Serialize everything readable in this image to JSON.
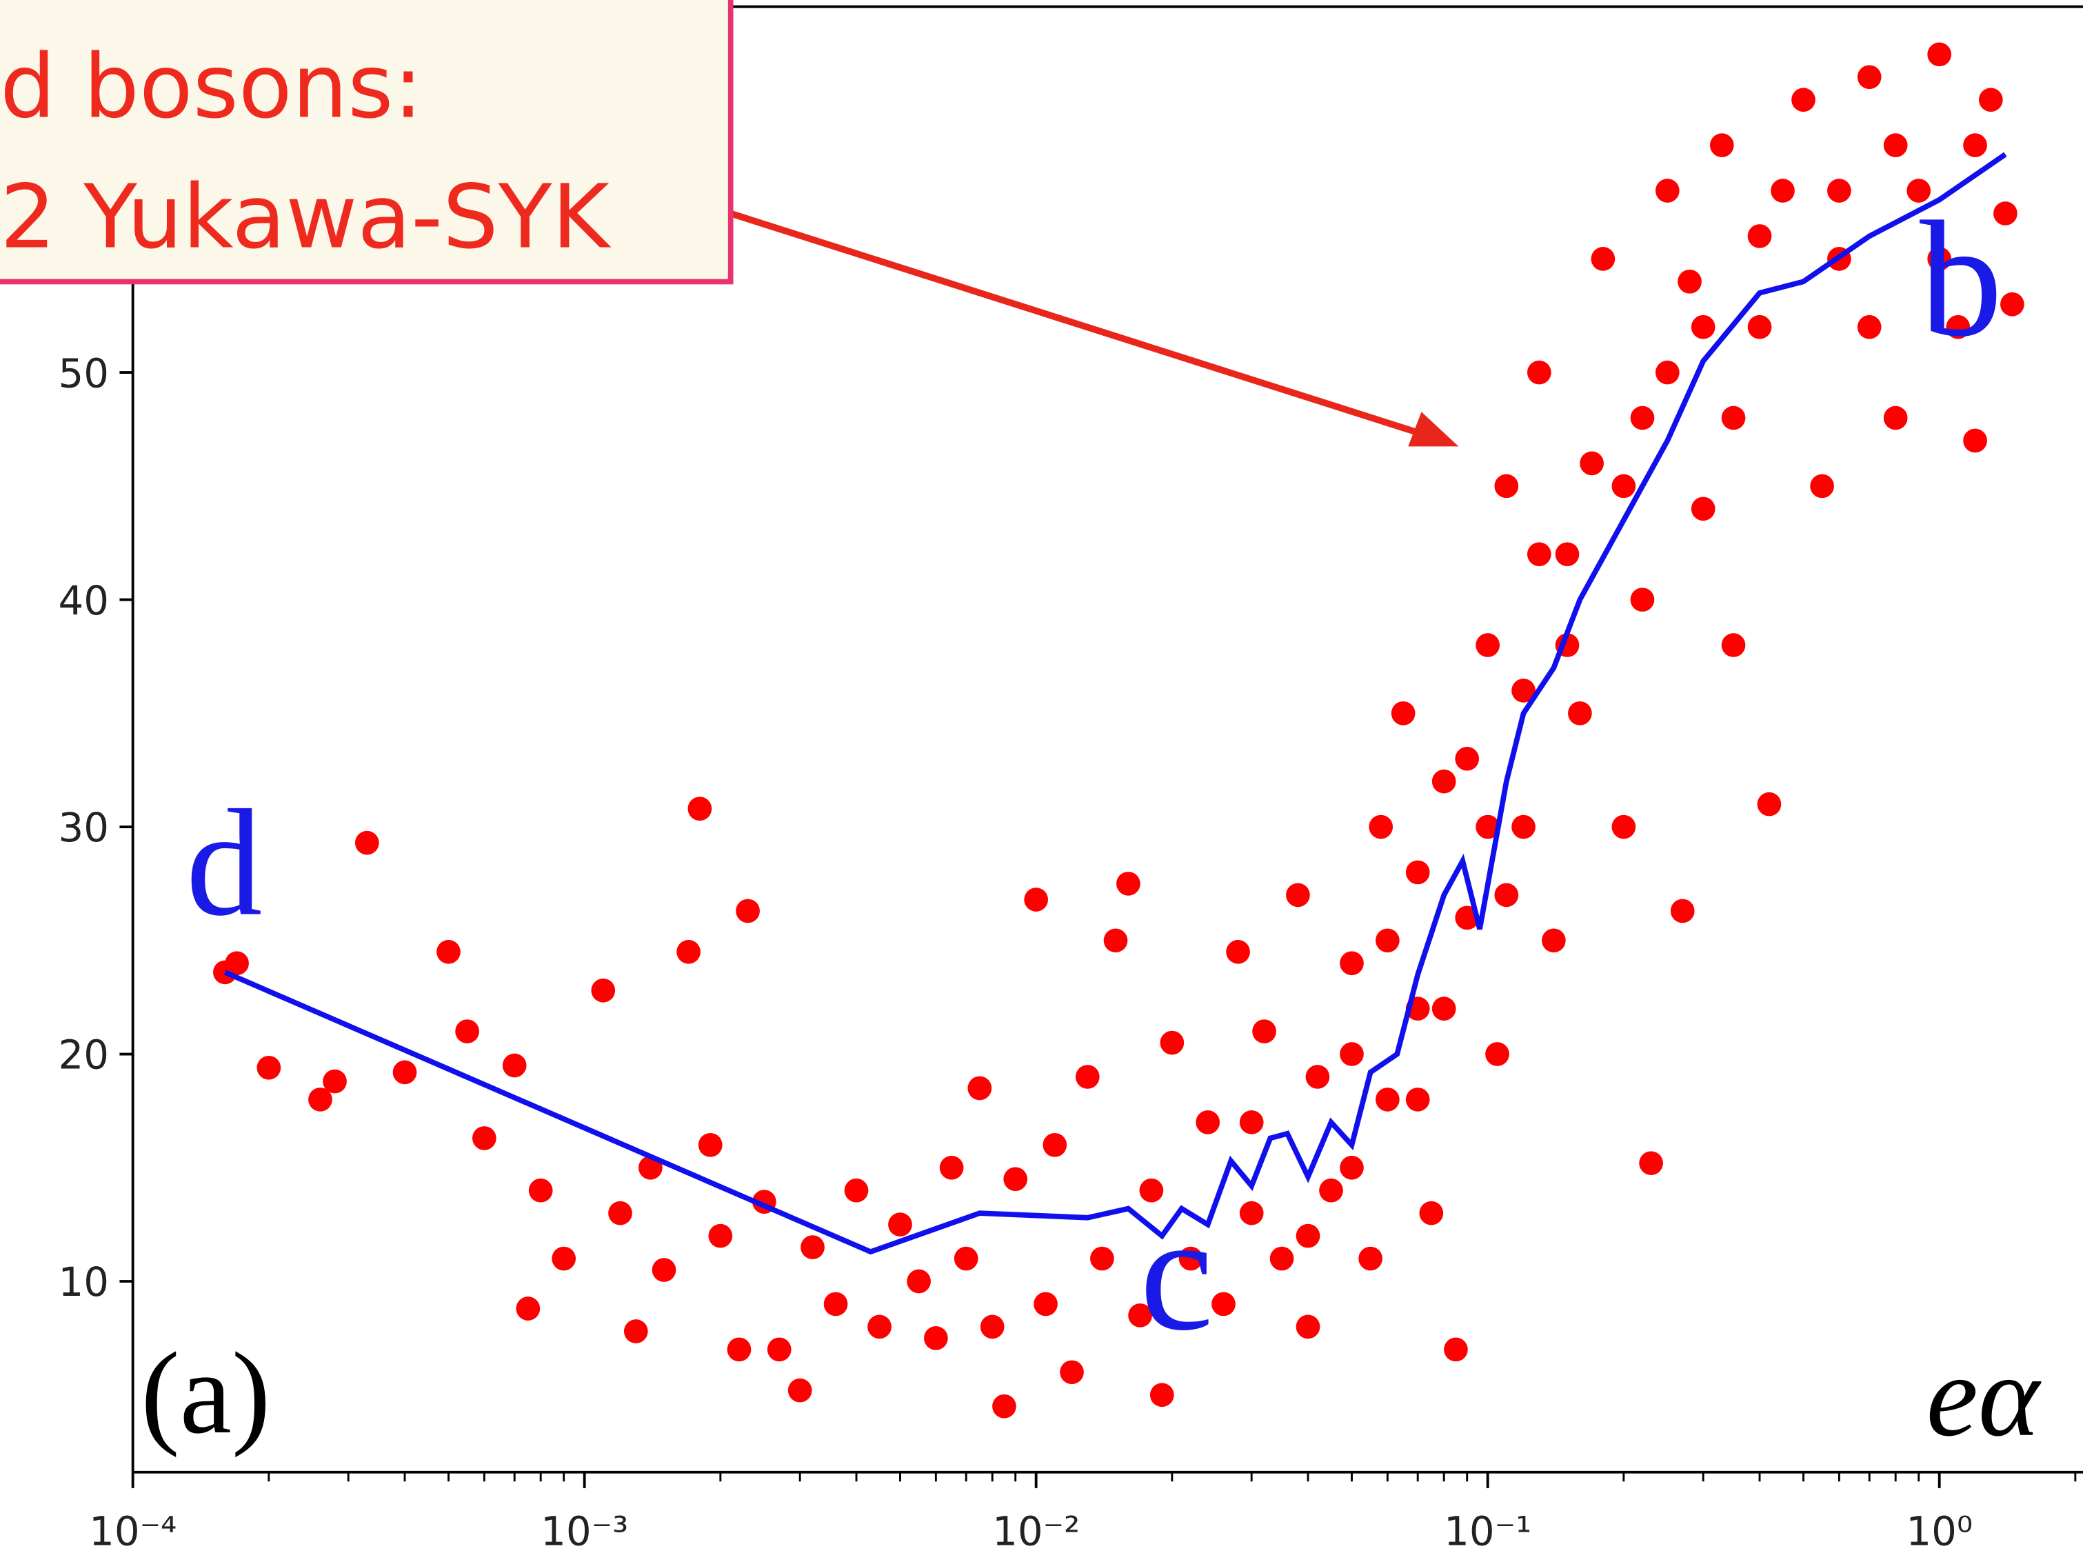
{
  "chart_data": {
    "type": "scatter",
    "points": {
      "color": "#ff0000",
      "x": [
        0.00016,
        0.00017,
        0.0002,
        0.00026,
        0.00028,
        0.00033,
        0.0004,
        0.0005,
        0.00055,
        0.0006,
        0.0007,
        0.00075,
        0.0008,
        0.0009,
        0.0011,
        0.0012,
        0.0013,
        0.0014,
        0.0015,
        0.0017,
        0.0018,
        0.0019,
        0.002,
        0.0022,
        0.0023,
        0.0025,
        0.0027,
        0.003,
        0.0032,
        0.0036,
        0.004,
        0.0045,
        0.005,
        0.0055,
        0.006,
        0.0065,
        0.007,
        0.0075,
        0.008,
        0.0085,
        0.009,
        0.01,
        0.0105,
        0.011,
        0.012,
        0.013,
        0.014,
        0.015,
        0.016,
        0.017,
        0.018,
        0.019,
        0.02,
        0.022,
        0.024,
        0.026,
        0.028,
        0.03,
        0.032,
        0.035,
        0.038,
        0.04,
        0.042,
        0.045,
        0.05,
        0.055,
        0.058,
        0.06,
        0.065,
        0.07,
        0.075,
        0.08,
        0.085,
        0.09,
        0.1,
        0.105,
        0.11,
        0.12,
        0.13,
        0.14,
        0.15,
        0.16,
        0.18,
        0.2,
        0.22,
        0.23,
        0.25,
        0.27,
        0.3,
        0.33,
        0.35,
        0.4,
        0.42,
        0.5,
        0.55,
        0.6,
        0.7,
        0.8,
        0.9,
        1,
        1.1,
        1.2,
        1.3,
        1.4,
        1.45,
        0.03,
        0.04,
        0.05,
        0.06,
        0.07,
        0.08,
        0.1,
        0.12,
        0.15,
        0.2,
        0.25,
        0.3,
        0.4,
        0.6,
        0.8,
        1.2,
        0.05,
        0.07,
        0.09,
        0.11,
        0.13,
        0.17,
        0.22,
        0.28,
        0.35,
        0.45,
        0.7,
        1.0
      ],
      "y": [
        23.6,
        24,
        19.4,
        18,
        18.8,
        29.3,
        19.2,
        24.5,
        21,
        16.3,
        19.5,
        8.8,
        14,
        11,
        22.8,
        13,
        7.8,
        15,
        10.5,
        24.5,
        30.8,
        16,
        12,
        7,
        26.3,
        13.5,
        7,
        5.2,
        11.5,
        9,
        14,
        8,
        12.5,
        10,
        7.5,
        15,
        11,
        18.5,
        8,
        4.5,
        14.5,
        26.8,
        9,
        16,
        6,
        19,
        11,
        25,
        27.5,
        8.5,
        14,
        5,
        20.5,
        11,
        17,
        9,
        24.5,
        13,
        21,
        11,
        27,
        8,
        19,
        14,
        24,
        11,
        30,
        18,
        35,
        22,
        13,
        32,
        7,
        26,
        38,
        20,
        45,
        30,
        50,
        25,
        42,
        35,
        55,
        30,
        48,
        15.2,
        58,
        26.3,
        44,
        60,
        38,
        52,
        31,
        62,
        45,
        55,
        63,
        48,
        58,
        64,
        52,
        47,
        62,
        57,
        53,
        17,
        12,
        20,
        25,
        28,
        22,
        30,
        36,
        38,
        45,
        50,
        52,
        56,
        58,
        60,
        60,
        15,
        18,
        33,
        27,
        42,
        46,
        40,
        54,
        48,
        58,
        52,
        55
      ]
    },
    "line": {
      "color": "#1010ee",
      "x": [
        0.00016,
        0.0043,
        0.0075,
        0.013,
        0.016,
        0.019,
        0.021,
        0.024,
        0.027,
        0.03,
        0.033,
        0.036,
        0.04,
        0.045,
        0.05,
        0.055,
        0.063,
        0.07,
        0.08,
        0.088,
        0.096,
        0.11,
        0.12,
        0.14,
        0.16,
        0.2,
        0.25,
        0.3,
        0.4,
        0.5,
        0.7,
        1.0,
        1.4
      ],
      "y": [
        23.6,
        11.3,
        13,
        12.8,
        13.2,
        12,
        13.2,
        12.5,
        15.3,
        14.2,
        16.3,
        16.5,
        14.6,
        17,
        16,
        19.2,
        20,
        23.5,
        27,
        28.5,
        25.5,
        32,
        35,
        37,
        40,
        43.5,
        47,
        50.5,
        53.5,
        54,
        56,
        57.6,
        59.6
      ]
    },
    "xscale": "log",
    "xlim": [
      0.0001,
      2.08
    ],
    "ylim": [
      1.6,
      66.1
    ],
    "xticks": [
      {
        "value": 0.0001,
        "label": "10⁻⁴"
      },
      {
        "value": 0.001,
        "label": "10⁻³"
      },
      {
        "value": 0.01,
        "label": "10⁻²"
      },
      {
        "value": 0.1,
        "label": "10⁻¹"
      },
      {
        "value": 1,
        "label": "10⁰"
      }
    ],
    "xminorticks": [
      0.0002,
      0.0003,
      0.0004,
      0.0005,
      0.0006,
      0.0007,
      0.0008,
      0.0009,
      0.002,
      0.003,
      0.004,
      0.005,
      0.006,
      0.007,
      0.008,
      0.009,
      0.02,
      0.03,
      0.04,
      0.05,
      0.06,
      0.07,
      0.08,
      0.09,
      0.2,
      0.3,
      0.4,
      0.5,
      0.6,
      0.7,
      0.8,
      0.9,
      2
    ],
    "yticks": [
      10,
      20,
      30,
      40,
      50
    ],
    "xlabel": "eα",
    "annotations": {
      "d": "d",
      "c": "c",
      "b": "b",
      "panel": "(a)"
    },
    "callout": [
      "d bosons:",
      "2 Yukawa-SYK"
    ]
  }
}
